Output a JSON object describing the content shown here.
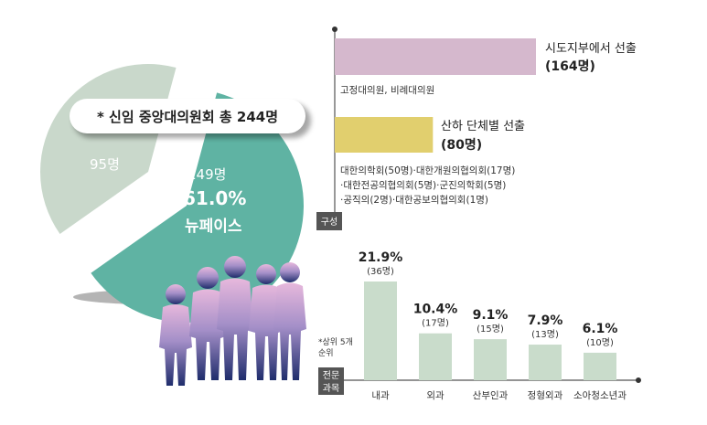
{
  "pie": {
    "title": "* 신임 중앙대의원회 총 244명",
    "slices": [
      {
        "label": "95명",
        "value": 95,
        "color": "#c9d8cb"
      },
      {
        "label": "149명",
        "value": 149,
        "percent_label": "61.0%",
        "tag": "뉴페이스",
        "color": "#5fb3a3"
      }
    ]
  },
  "composition": {
    "axis_label": "구성",
    "bars": [
      {
        "name": "시도지부에서 선출",
        "count_label": "(164명)",
        "value": 164,
        "color": "#d5b8cd",
        "notes": [
          "고정대의원, 비례대의원"
        ]
      },
      {
        "name": "산하 단체별 선출",
        "count_label": "(80명)",
        "value": 80,
        "color": "#e1cf6e",
        "notes": [
          "대한의학회(50명)·대한개원의협의회(17명)",
          "·대한전공의협의회(5명)·군진의학회(5명)",
          "·공직의(2명)·대한공보의협의회(1명)"
        ]
      }
    ]
  },
  "chart_data": {
    "type": "bar",
    "note": "*상위 5개 순위",
    "axis_label": "전문 과목",
    "categories": [
      "내과",
      "외과",
      "산부인과",
      "정형외과",
      "소아청소년과"
    ],
    "values": [
      21.9,
      10.4,
      9.1,
      7.9,
      6.1
    ],
    "percent_labels": [
      "21.9%",
      "10.4%",
      "9.1%",
      "7.9%",
      "6.1%"
    ],
    "count_labels": [
      "(36명)",
      "(17명)",
      "(15명)",
      "(13명)",
      "(10명)"
    ],
    "bar_color": "#c9dccb"
  }
}
